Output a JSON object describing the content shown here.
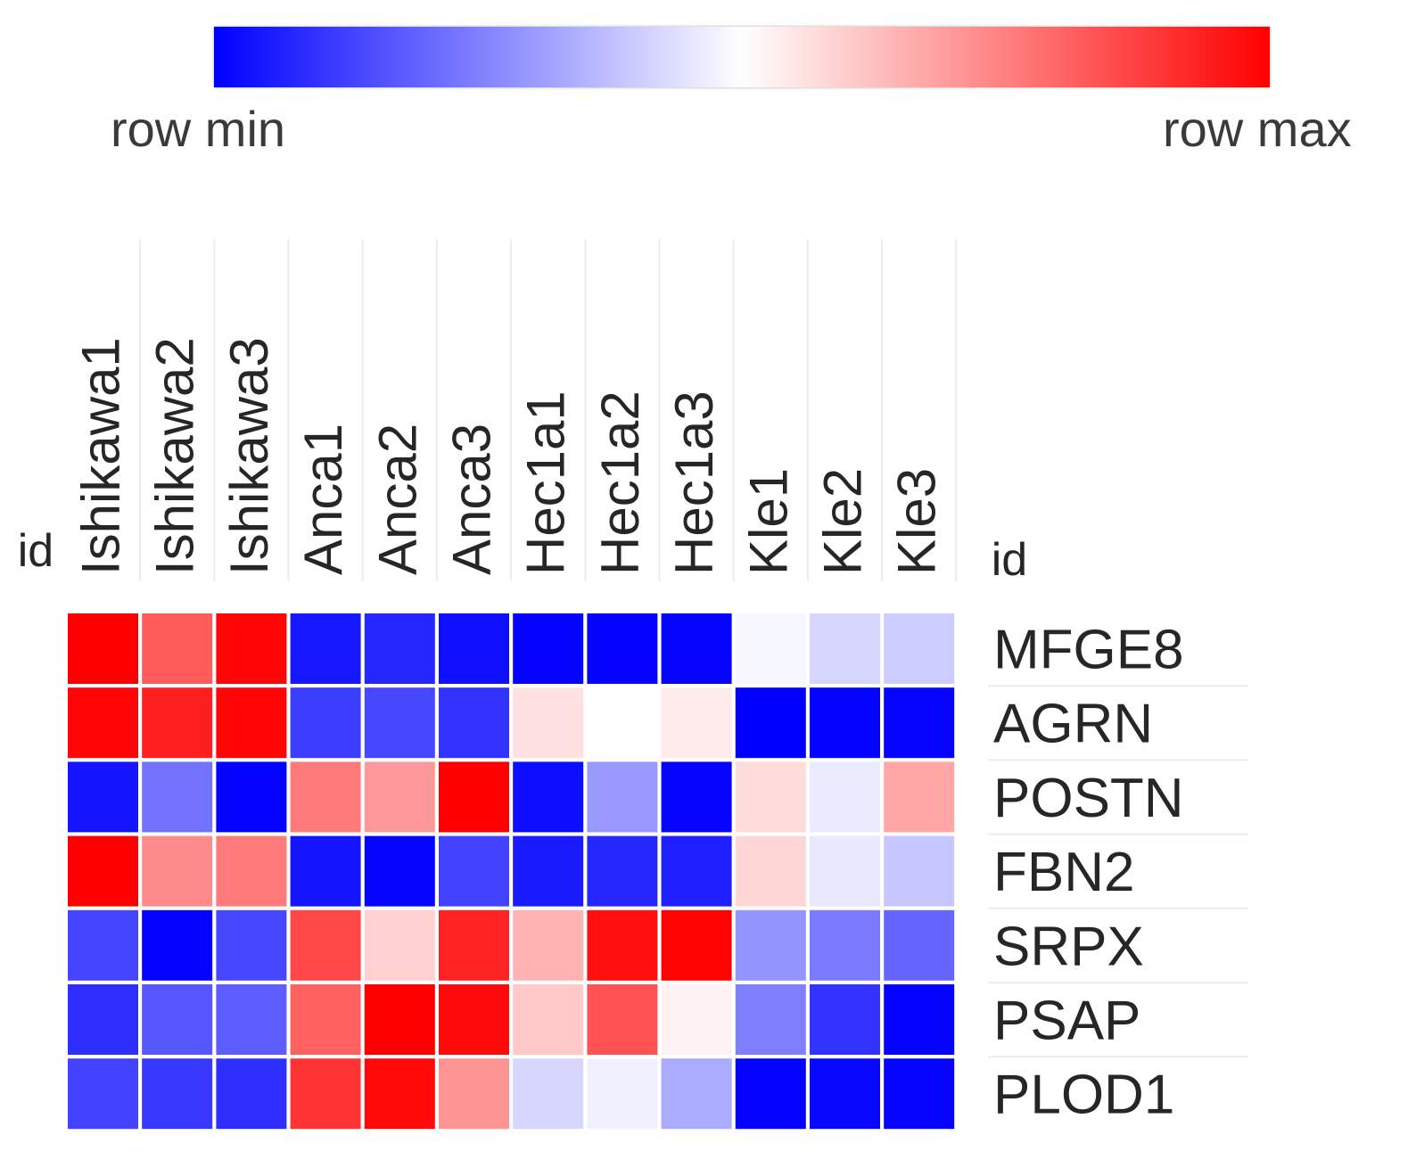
{
  "legend": {
    "min_label": "row min",
    "max_label": "row max",
    "colors": {
      "min": "#0000ff",
      "mid": "#ffffff",
      "max": "#ff0000"
    }
  },
  "chart_data": {
    "type": "heatmap",
    "id_label": "id",
    "columns": [
      "Ishikawa1",
      "Ishikawa2",
      "Ishikawa3",
      "Anca1",
      "Anca2",
      "Anca3",
      "Hec1a1",
      "Hec1a2",
      "Hec1a3",
      "Kle1",
      "Kle2",
      "Kle3"
    ],
    "rows": [
      "MFGE8",
      "AGRN",
      "POSTN",
      "FBN2",
      "SRPX",
      "PSAP",
      "PLOD1"
    ],
    "values": [
      [
        1.0,
        0.64,
        0.98,
        -0.91,
        -0.85,
        -0.94,
        -0.99,
        -0.99,
        -0.98,
        -0.03,
        -0.16,
        -0.2
      ],
      [
        0.98,
        0.88,
        0.98,
        -0.76,
        -0.72,
        -0.8,
        0.12,
        0.0,
        0.08,
        -1.0,
        -0.99,
        -0.98
      ],
      [
        -0.92,
        -0.55,
        -0.99,
        0.52,
        0.4,
        1.0,
        -0.95,
        -0.4,
        -0.98,
        0.14,
        -0.08,
        0.35
      ],
      [
        1.0,
        0.45,
        0.52,
        -0.92,
        -0.98,
        -0.74,
        -0.9,
        -0.85,
        -0.88,
        0.16,
        -0.09,
        -0.22
      ],
      [
        -0.73,
        -0.99,
        -0.72,
        0.72,
        0.18,
        0.86,
        0.3,
        0.94,
        0.99,
        -0.42,
        -0.52,
        -0.6
      ],
      [
        -0.82,
        -0.66,
        -0.64,
        0.62,
        1.0,
        0.96,
        0.21,
        0.68,
        0.05,
        -0.5,
        -0.8,
        -0.99
      ],
      [
        -0.74,
        -0.78,
        -0.82,
        0.8,
        0.97,
        0.42,
        -0.16,
        -0.06,
        -0.33,
        -0.99,
        -0.97,
        -0.98
      ]
    ],
    "scale": "row-normalized (row min to row max)"
  }
}
